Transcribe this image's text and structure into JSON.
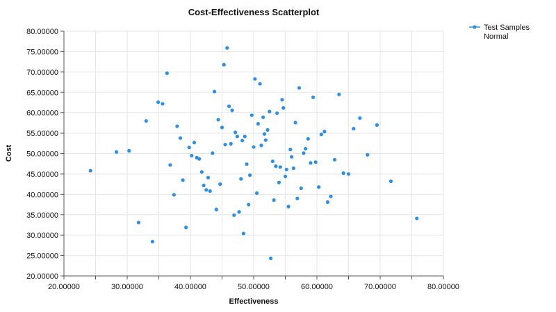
{
  "chart_data": {
    "type": "scatter",
    "title": "Cost-Effectiveness Scatterplot",
    "xlabel": "Effectiveness",
    "ylabel": "Cost",
    "xlim": [
      20,
      80
    ],
    "ylim": [
      20,
      80
    ],
    "x_ticks": [
      "20.00000",
      "30.00000",
      "40.00000",
      "50.00000",
      "60.00000",
      "70.00000",
      "80.00000"
    ],
    "y_ticks": [
      "20.00000",
      "25.00000",
      "30.00000",
      "35.00000",
      "40.00000",
      "45.00000",
      "50.00000",
      "55.00000",
      "60.00000",
      "65.00000",
      "70.00000",
      "75.00000",
      "80.00000"
    ],
    "grid": true,
    "legend": {
      "position": "top-right",
      "entries": [
        "Test Samples",
        "Normal"
      ]
    },
    "series": [
      {
        "name": "Test Samples Normal",
        "color": "#2b8fe8",
        "points": [
          [
            24.2,
            45.8
          ],
          [
            28.3,
            50.4
          ],
          [
            30.3,
            50.7
          ],
          [
            31.8,
            33.1
          ],
          [
            33.0,
            58.0
          ],
          [
            34.0,
            28.4
          ],
          [
            34.9,
            62.6
          ],
          [
            35.6,
            62.2
          ],
          [
            36.3,
            69.7
          ],
          [
            36.8,
            47.2
          ],
          [
            37.4,
            39.9
          ],
          [
            37.9,
            56.7
          ],
          [
            38.4,
            53.8
          ],
          [
            38.8,
            43.5
          ],
          [
            39.3,
            31.9
          ],
          [
            39.8,
            51.5
          ],
          [
            40.2,
            49.5
          ],
          [
            40.6,
            52.7
          ],
          [
            41.0,
            49.0
          ],
          [
            41.4,
            48.7
          ],
          [
            41.8,
            45.5
          ],
          [
            42.1,
            42.2
          ],
          [
            42.5,
            41.1
          ],
          [
            42.8,
            44.1
          ],
          [
            43.1,
            40.8
          ],
          [
            43.5,
            50.1
          ],
          [
            43.8,
            65.2
          ],
          [
            44.1,
            36.3
          ],
          [
            44.4,
            58.3
          ],
          [
            44.7,
            42.5
          ],
          [
            45.0,
            56.4
          ],
          [
            45.3,
            71.8
          ],
          [
            45.5,
            52.2
          ],
          [
            45.8,
            75.9
          ],
          [
            46.1,
            61.6
          ],
          [
            46.4,
            52.4
          ],
          [
            46.6,
            60.6
          ],
          [
            46.9,
            34.9
          ],
          [
            47.1,
            55.2
          ],
          [
            47.4,
            54.2
          ],
          [
            47.7,
            35.7
          ],
          [
            48.0,
            43.8
          ],
          [
            48.2,
            53.2
          ],
          [
            48.4,
            30.4
          ],
          [
            48.6,
            54.2
          ],
          [
            48.9,
            47.4
          ],
          [
            49.2,
            37.5
          ],
          [
            49.4,
            44.7
          ],
          [
            49.7,
            59.4
          ],
          [
            50.0,
            51.6
          ],
          [
            50.2,
            68.3
          ],
          [
            50.5,
            40.3
          ],
          [
            50.7,
            57.3
          ],
          [
            51.0,
            67.1
          ],
          [
            51.2,
            52.0
          ],
          [
            51.5,
            58.9
          ],
          [
            51.7,
            54.8
          ],
          [
            51.9,
            53.3
          ],
          [
            52.2,
            55.8
          ],
          [
            52.5,
            60.3
          ],
          [
            52.7,
            24.3
          ],
          [
            53.0,
            48.1
          ],
          [
            53.2,
            38.6
          ],
          [
            53.5,
            46.9
          ],
          [
            53.7,
            59.9
          ],
          [
            54.0,
            42.9
          ],
          [
            54.2,
            46.7
          ],
          [
            54.5,
            63.2
          ],
          [
            54.7,
            61.2
          ],
          [
            55.0,
            44.4
          ],
          [
            55.2,
            46.1
          ],
          [
            55.5,
            37.0
          ],
          [
            55.8,
            51.0
          ],
          [
            56.0,
            49.2
          ],
          [
            56.3,
            46.4
          ],
          [
            56.6,
            57.6
          ],
          [
            56.9,
            39.0
          ],
          [
            57.2,
            66.1
          ],
          [
            57.5,
            41.5
          ],
          [
            57.9,
            50.1
          ],
          [
            58.2,
            51.2
          ],
          [
            58.6,
            53.6
          ],
          [
            59.0,
            47.7
          ],
          [
            59.4,
            63.8
          ],
          [
            59.8,
            47.9
          ],
          [
            60.3,
            41.8
          ],
          [
            60.7,
            54.7
          ],
          [
            61.2,
            55.4
          ],
          [
            61.7,
            38.1
          ],
          [
            62.2,
            39.5
          ],
          [
            62.8,
            48.5
          ],
          [
            63.5,
            64.5
          ],
          [
            64.2,
            45.2
          ],
          [
            65.0,
            45.0
          ],
          [
            65.8,
            56.1
          ],
          [
            66.8,
            58.7
          ],
          [
            68.0,
            49.7
          ],
          [
            69.5,
            57.0
          ],
          [
            71.7,
            43.2
          ],
          [
            75.8,
            34.1
          ]
        ]
      }
    ]
  }
}
